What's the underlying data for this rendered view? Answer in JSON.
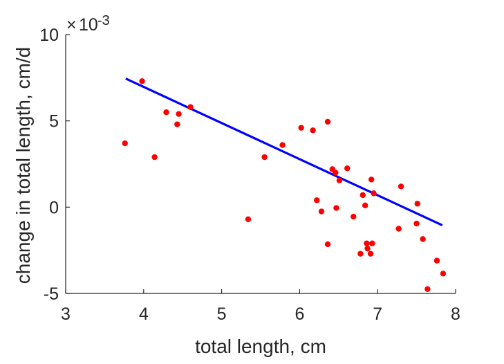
{
  "chart_data": {
    "type": "scatter",
    "title": "",
    "xlabel": "total length, cm",
    "ylabel": "change in total length, cm/d",
    "y_exponent_label": "10",
    "y_exponent_power": "-3",
    "y_exponent_times": "×",
    "xlim": [
      3,
      8
    ],
    "ylim": [
      -5,
      10
    ],
    "y_units": "x 10^-3 cm/d",
    "xticks": [
      "3",
      "4",
      "5",
      "6",
      "7",
      "8"
    ],
    "yticks": [
      "-5",
      "0",
      "5",
      "10"
    ],
    "xtick_values": [
      3,
      4,
      5,
      6,
      7,
      8
    ],
    "ytick_values": [
      -5,
      0,
      5,
      10
    ],
    "grid": false,
    "colors": {
      "points": "#ff0000",
      "fit_line": "#0000ff",
      "axes": "#262626"
    },
    "series": [
      {
        "type": "scatter",
        "points": [
          {
            "x": 3.76,
            "y": 3.7
          },
          {
            "x": 3.98,
            "y": 7.3
          },
          {
            "x": 4.14,
            "y": 2.9
          },
          {
            "x": 4.29,
            "y": 5.5
          },
          {
            "x": 4.43,
            "y": 4.8
          },
          {
            "x": 4.45,
            "y": 5.4
          },
          {
            "x": 4.6,
            "y": 5.8
          },
          {
            "x": 5.34,
            "y": -0.7
          },
          {
            "x": 5.55,
            "y": 2.9
          },
          {
            "x": 5.78,
            "y": 3.6
          },
          {
            "x": 6.02,
            "y": 4.6
          },
          {
            "x": 6.17,
            "y": 4.45
          },
          {
            "x": 6.22,
            "y": 0.4
          },
          {
            "x": 6.28,
            "y": -0.25
          },
          {
            "x": 6.36,
            "y": 4.95
          },
          {
            "x": 6.36,
            "y": -2.15
          },
          {
            "x": 6.42,
            "y": 2.2
          },
          {
            "x": 6.46,
            "y": 2.0
          },
          {
            "x": 6.47,
            "y": -0.05
          },
          {
            "x": 6.51,
            "y": 1.55
          },
          {
            "x": 6.61,
            "y": 2.25
          },
          {
            "x": 6.69,
            "y": -0.55
          },
          {
            "x": 6.78,
            "y": -2.7
          },
          {
            "x": 6.81,
            "y": 0.7
          },
          {
            "x": 6.84,
            "y": 0.1
          },
          {
            "x": 6.86,
            "y": -2.1
          },
          {
            "x": 6.87,
            "y": -2.4
          },
          {
            "x": 6.91,
            "y": -2.7
          },
          {
            "x": 6.92,
            "y": 1.6
          },
          {
            "x": 6.93,
            "y": -2.1
          },
          {
            "x": 6.95,
            "y": 0.8
          },
          {
            "x": 7.27,
            "y": -1.25
          },
          {
            "x": 7.3,
            "y": 1.2
          },
          {
            "x": 7.5,
            "y": -0.95
          },
          {
            "x": 7.51,
            "y": 0.2
          },
          {
            "x": 7.58,
            "y": -1.85
          },
          {
            "x": 7.64,
            "y": -4.75
          },
          {
            "x": 7.76,
            "y": -3.1
          },
          {
            "x": 7.84,
            "y": -3.85
          }
        ]
      },
      {
        "type": "line",
        "points": [
          {
            "x": 3.77,
            "y": 7.45
          },
          {
            "x": 7.83,
            "y": -1.05
          }
        ]
      }
    ]
  }
}
